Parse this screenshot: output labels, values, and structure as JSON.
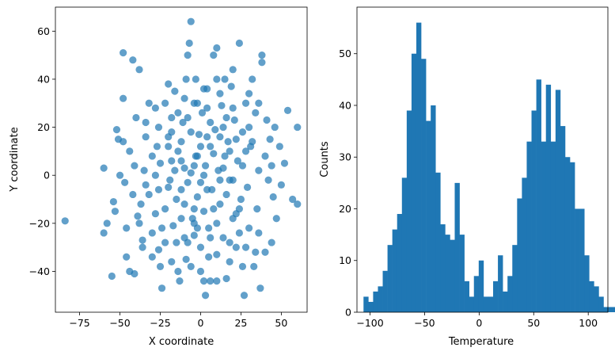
{
  "chart_data": [
    {
      "type": "scatter",
      "xlabel": "X coordinate",
      "ylabel": "Y coordinate",
      "xlim": [
        -90,
        66
      ],
      "ylim": [
        -57,
        70
      ],
      "xticks": [
        -75,
        -50,
        -25,
        0,
        25,
        50
      ],
      "yticks": [
        -40,
        -20,
        0,
        20,
        40,
        60
      ],
      "xtick_labels": [
        "−75",
        "−50",
        "−25",
        "0",
        "25",
        "50"
      ],
      "ytick_labels": [
        "−40",
        "−20",
        "0",
        "20",
        "40",
        "60"
      ],
      "grid": false,
      "color": "#1f77b4",
      "alpha": 0.7,
      "points": [
        [
          -84,
          -19
        ],
        [
          -60,
          3
        ],
        [
          -60,
          -24
        ],
        [
          -58,
          -20
        ],
        [
          -55,
          -42
        ],
        [
          -54,
          -11
        ],
        [
          -53,
          -15
        ],
        [
          -52,
          19
        ],
        [
          -51,
          15
        ],
        [
          -48,
          51
        ],
        [
          -48,
          32
        ],
        [
          -48,
          14
        ],
        [
          -47,
          -3
        ],
        [
          -46,
          -34
        ],
        [
          -44,
          -40
        ],
        [
          -42,
          48
        ],
        [
          -41,
          -41
        ],
        [
          -38,
          44
        ],
        [
          -41,
          4
        ],
        [
          -39,
          -17
        ],
        [
          -37,
          -12
        ],
        [
          -36,
          -27
        ],
        [
          -35,
          2
        ],
        [
          -34,
          22
        ],
        [
          -32,
          -8
        ],
        [
          -30,
          -24
        ],
        [
          -28,
          28
        ],
        [
          -27,
          12
        ],
        [
          -26,
          -31
        ],
        [
          -25,
          -38
        ],
        [
          -24,
          -47
        ],
        [
          -22,
          -14
        ],
        [
          -20,
          16
        ],
        [
          -19,
          -2
        ],
        [
          -18,
          6
        ],
        [
          -17,
          -21
        ],
        [
          -16,
          35
        ],
        [
          -15,
          -28
        ],
        [
          -14,
          10
        ],
        [
          -13,
          -44
        ],
        [
          -12,
          -6
        ],
        [
          -11,
          22
        ],
        [
          -10,
          -12
        ],
        [
          -9,
          40
        ],
        [
          -9,
          -35
        ],
        [
          -8,
          50
        ],
        [
          -7,
          55
        ],
        [
          -6,
          64
        ],
        [
          -6,
          1
        ],
        [
          -5,
          -18
        ],
        [
          -4,
          30
        ],
        [
          -4,
          -25
        ],
        [
          -3,
          8
        ],
        [
          -2,
          -9
        ],
        [
          -1,
          17
        ],
        [
          0,
          -3
        ],
        [
          0,
          -40
        ],
        [
          1,
          26
        ],
        [
          2,
          -15
        ],
        [
          3,
          4
        ],
        [
          3,
          -50
        ],
        [
          4,
          36
        ],
        [
          5,
          -22
        ],
        [
          6,
          12
        ],
        [
          6,
          -44
        ],
        [
          7,
          -6
        ],
        [
          8,
          50
        ],
        [
          9,
          19
        ],
        [
          10,
          -33
        ],
        [
          10,
          53
        ],
        [
          11,
          2
        ],
        [
          12,
          -12
        ],
        [
          13,
          29
        ],
        [
          14,
          -26
        ],
        [
          15,
          8
        ],
        [
          16,
          -43
        ],
        [
          17,
          14
        ],
        [
          18,
          -2
        ],
        [
          19,
          37
        ],
        [
          20,
          -18
        ],
        [
          21,
          23
        ],
        [
          22,
          -30
        ],
        [
          23,
          6
        ],
        [
          24,
          55
        ],
        [
          25,
          -10
        ],
        [
          26,
          18
        ],
        [
          27,
          -50
        ],
        [
          28,
          30
        ],
        [
          29,
          -5
        ],
        [
          30,
          -22
        ],
        [
          31,
          12
        ],
        [
          33,
          -38
        ],
        [
          34,
          26
        ],
        [
          35,
          -14
        ],
        [
          36,
          2
        ],
        [
          37,
          -47
        ],
        [
          38,
          50
        ],
        [
          38,
          47
        ],
        [
          40,
          8
        ],
        [
          41,
          23
        ],
        [
          42,
          -2
        ],
        [
          43,
          15
        ],
        [
          44,
          -28
        ],
        [
          45,
          -9
        ],
        [
          46,
          20
        ],
        [
          47,
          -18
        ],
        [
          49,
          12
        ],
        [
          50,
          -4
        ],
        [
          52,
          5
        ],
        [
          54,
          27
        ],
        [
          57,
          -10
        ],
        [
          60,
          20
        ],
        [
          60,
          -12
        ],
        [
          -30,
          8
        ],
        [
          -25,
          5
        ],
        [
          -20,
          -5
        ],
        [
          -18,
          24
        ],
        [
          -15,
          -10
        ],
        [
          -12,
          14
        ],
        [
          -10,
          3
        ],
        [
          -8,
          -3
        ],
        [
          -6,
          18
        ],
        [
          -4,
          -14
        ],
        [
          -2,
          8
        ],
        [
          0,
          12
        ],
        [
          2,
          0
        ],
        [
          4,
          -6
        ],
        [
          6,
          22
        ],
        [
          8,
          9
        ],
        [
          10,
          -20
        ],
        [
          12,
          16
        ],
        [
          14,
          3
        ],
        [
          16,
          -8
        ],
        [
          18,
          10
        ],
        [
          20,
          -2
        ],
        [
          22,
          15
        ],
        [
          24,
          -14
        ],
        [
          -34,
          -4
        ],
        [
          -28,
          -16
        ],
        [
          -22,
          30
        ],
        [
          -14,
          26
        ],
        [
          -8,
          -28
        ],
        [
          -2,
          -22
        ],
        [
          4,
          28
        ],
        [
          12,
          34
        ],
        [
          18,
          -36
        ],
        [
          26,
          4
        ],
        [
          32,
          40
        ],
        [
          -44,
          10
        ],
        [
          -38,
          -20
        ],
        [
          -26,
          20
        ],
        [
          -18,
          -36
        ],
        [
          -10,
          32
        ],
        [
          -3,
          40
        ],
        [
          5,
          -34
        ],
        [
          15,
          40
        ],
        [
          28,
          -30
        ],
        [
          40,
          -32
        ],
        [
          -40,
          24
        ],
        [
          -32,
          30
        ],
        [
          -24,
          -22
        ],
        [
          -16,
          2
        ],
        [
          -8,
          24
        ],
        [
          0,
          -30
        ],
        [
          8,
          -14
        ],
        [
          16,
          24
        ],
        [
          24,
          -24
        ],
        [
          32,
          14
        ],
        [
          -36,
          -30
        ],
        [
          -20,
          38
        ],
        [
          -12,
          -18
        ],
        [
          -4,
          4
        ],
        [
          2,
          36
        ],
        [
          10,
          40
        ],
        [
          20,
          44
        ],
        [
          30,
          20
        ],
        [
          36,
          -24
        ],
        [
          44,
          4
        ],
        [
          -46,
          -22
        ],
        [
          -30,
          -34
        ],
        [
          -22,
          -28
        ],
        [
          -14,
          -40
        ],
        [
          -6,
          -38
        ],
        [
          2,
          -44
        ],
        [
          10,
          -44
        ],
        [
          18,
          -28
        ],
        [
          26,
          -38
        ],
        [
          34,
          -32
        ],
        [
          -28,
          0
        ],
        [
          -20,
          12
        ],
        [
          -12,
          6
        ],
        [
          -4,
          -20
        ],
        [
          4,
          16
        ],
        [
          12,
          -2
        ],
        [
          20,
          28
        ],
        [
          28,
          10
        ],
        [
          36,
          30
        ],
        [
          -50,
          0
        ],
        [
          -42,
          -8
        ],
        [
          -34,
          16
        ],
        [
          -26,
          -6
        ],
        [
          -18,
          18
        ],
        [
          -10,
          -26
        ],
        [
          -2,
          30
        ],
        [
          6,
          -26
        ],
        [
          14,
          20
        ],
        [
          22,
          -16
        ],
        [
          30,
          34
        ]
      ]
    },
    {
      "type": "histogram",
      "xlabel": "Temperature",
      "ylabel": "Counts",
      "xlim": [
        -112,
        118
      ],
      "ylim": [
        0,
        59
      ],
      "xticks": [
        -100,
        -50,
        0,
        50,
        100
      ],
      "yticks": [
        0,
        10,
        20,
        30,
        40,
        50
      ],
      "xtick_labels": [
        "−100",
        "−50",
        "0",
        "50",
        "100"
      ],
      "ytick_labels": [
        "0",
        "10",
        "20",
        "30",
        "40",
        "50"
      ],
      "grid": false,
      "color": "#1f77b4",
      "bin_start": -106,
      "bin_width": 4.4,
      "counts": [
        3,
        2,
        4,
        5,
        8,
        13,
        16,
        19,
        26,
        39,
        50,
        56,
        49,
        37,
        40,
        27,
        17,
        15,
        14,
        25,
        15,
        6,
        3,
        7,
        10,
        3,
        3,
        6,
        11,
        4,
        7,
        13,
        22,
        26,
        33,
        39,
        45,
        33,
        44,
        33,
        43,
        36,
        30,
        29,
        20,
        20,
        11,
        6,
        5,
        3,
        1,
        1,
        1
      ]
    }
  ]
}
